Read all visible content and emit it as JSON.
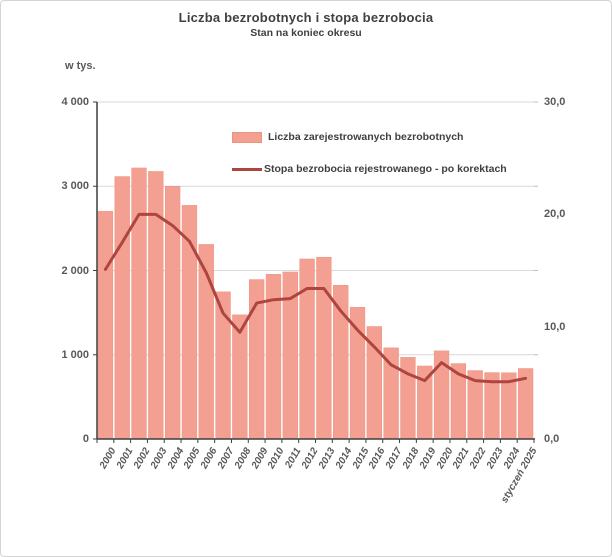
{
  "window": {
    "background": "#ffffff",
    "border_color": "#d4d4d4"
  },
  "header": {
    "title": "Liczba bezrobotnych i stopa bezrobocia",
    "subtitle": "Stan na koniec okresu"
  },
  "colors": {
    "bar_fill": "#F3A092",
    "bar_edge": "#EC937F",
    "line": "#AE453F",
    "gridline": "#D9D9D9",
    "axis_line": "#3F3F3F",
    "axis_text": "#595959",
    "title_text": "#404040"
  },
  "legend": {
    "items": [
      {
        "label": "Liczba zarejestrowanych bezrobotnych",
        "marker": "bar-swatch"
      },
      {
        "label": "Stopa bezrobocia rejestrowanego - po korektach",
        "marker": "line-swatch"
      }
    ]
  },
  "chart_data": {
    "type": "combo-bar-line",
    "title": "Liczba bezrobotnych i stopa bezrobocia",
    "subtitle": "Stan na koniec okresu",
    "categories": [
      "2000",
      "2001",
      "2002",
      "2003",
      "2004",
      "2005",
      "2006",
      "2007",
      "2008",
      "2009",
      "2010",
      "2011",
      "2012",
      "2013",
      "2014",
      "2015",
      "2016",
      "2017",
      "2018",
      "2019",
      "2020",
      "2021",
      "2022",
      "2023",
      "2024",
      "styczeń 2025"
    ],
    "series": [
      {
        "name": "Liczba zarejestrowanych bezrobotnych",
        "type": "bar",
        "axis": "left",
        "values": [
          2702.6,
          3115.1,
          3217.0,
          3175.7,
          2999.6,
          2773.0,
          2309.4,
          1746.6,
          1473.8,
          1892.7,
          1954.7,
          1982.7,
          2136.8,
          2157.9,
          1825.2,
          1563.3,
          1335.2,
          1081.7,
          968.9,
          866.4,
          1046.4,
          895.2,
          812.3,
          788.2,
          786.6,
          836.6
        ]
      },
      {
        "name": "Stopa bezrobocia rejestrowanego - po korektach",
        "type": "line",
        "axis": "right",
        "values": [
          15.1,
          17.5,
          20.0,
          20.0,
          19.0,
          17.6,
          14.8,
          11.2,
          9.5,
          12.1,
          12.4,
          12.5,
          13.4,
          13.4,
          11.4,
          9.7,
          8.2,
          6.6,
          5.8,
          5.2,
          6.8,
          5.8,
          5.2,
          5.1,
          5.1,
          5.4
        ]
      }
    ],
    "left_axis": {
      "label": "w tys.",
      "min": 0,
      "max": 4000,
      "ticks": [
        {
          "label": "4 000",
          "value": 4000
        },
        {
          "label": "3 000",
          "value": 3000
        },
        {
          "label": "2 000",
          "value": 2000
        },
        {
          "label": "1 000",
          "value": 1000
        },
        {
          "label": "0",
          "value": 0
        }
      ]
    },
    "right_axis": {
      "min": 0,
      "max": 30,
      "ticks": [
        {
          "label": "30,0",
          "value": 30
        },
        {
          "label": "20,0",
          "value": 20
        },
        {
          "label": "10,0",
          "value": 10
        },
        {
          "label": "0,0",
          "value": 0
        }
      ]
    },
    "grid": "horizontal",
    "legend_position": "inside-top-right"
  }
}
